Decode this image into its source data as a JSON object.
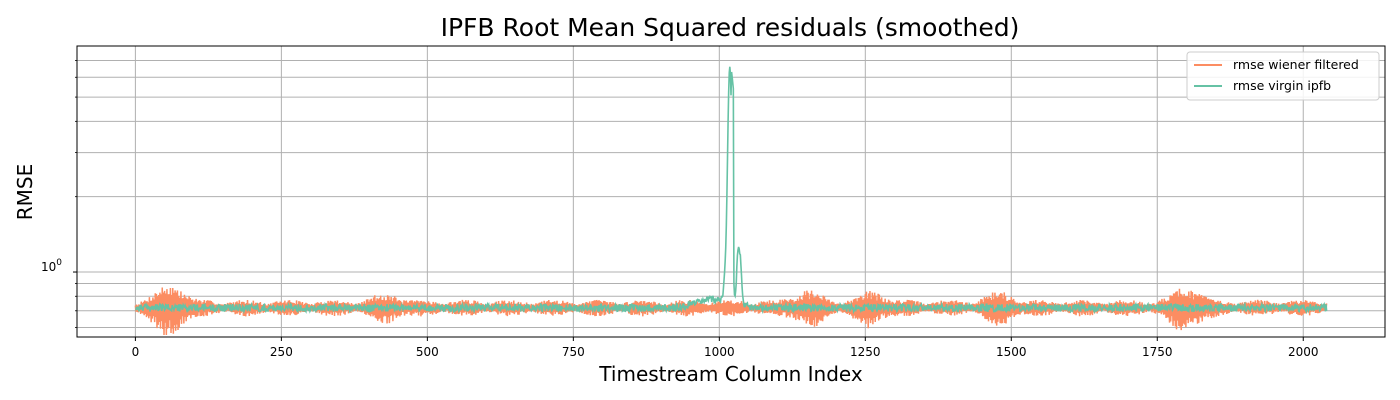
{
  "chart_data": {
    "type": "line",
    "title": "IPFB Root Mean Squared residuals (smoothed)",
    "xlabel": "Timestream Column Index",
    "ylabel": "RMSE",
    "xlim": [
      -100,
      2140
    ],
    "ylim": [
      0.55,
      8.0
    ],
    "yscale": "log",
    "grid": true,
    "legend_position": "top-right",
    "x_ticks": [
      0,
      250,
      500,
      750,
      1000,
      1250,
      1500,
      1750,
      2000
    ],
    "x_tick_labels": [
      "0",
      "250",
      "500",
      "750",
      "1000",
      "1250",
      "1500",
      "1750",
      "2000"
    ],
    "y_major_tick": {
      "value": 1.0,
      "base": "10",
      "exponent": "0"
    },
    "y_minor_ticks": [
      0.6,
      0.7,
      0.8,
      0.9,
      2,
      3,
      4,
      5,
      6,
      7
    ],
    "series": [
      {
        "name": "rmse wiener filtered",
        "color": "#fc8d62",
        "x_range": [
          0,
          2040
        ],
        "baseline": 0.72,
        "oscillation": "high-frequency noise, amplitude up to about ±0.10 around the baseline",
        "envelope_peaks": [
          {
            "x": 60,
            "min": 0.6,
            "max": 0.87
          },
          {
            "x": 430,
            "min": 0.66,
            "max": 0.78
          },
          {
            "x": 1150,
            "min": 0.63,
            "max": 0.8
          },
          {
            "x": 1260,
            "min": 0.7,
            "max": 0.86
          },
          {
            "x": 1480,
            "min": 0.65,
            "max": 0.8
          },
          {
            "x": 1800,
            "min": 0.63,
            "max": 0.86
          }
        ]
      },
      {
        "name": "rmse virgin ipfb",
        "color": "#66c2a5",
        "x_range": [
          0,
          2040
        ],
        "baseline": 0.72,
        "oscillation": "low-amplitude noise, about ±0.03 around the baseline",
        "peaks": [
          {
            "x": 1018,
            "y": 6.8
          },
          {
            "x": 1023,
            "y": 6.3
          },
          {
            "x": 1032,
            "y": 1.3
          },
          {
            "x": 1036,
            "y": 1.2
          }
        ],
        "bump": {
          "x_start": 930,
          "x_end": 1060,
          "level": 0.78
        }
      }
    ]
  }
}
